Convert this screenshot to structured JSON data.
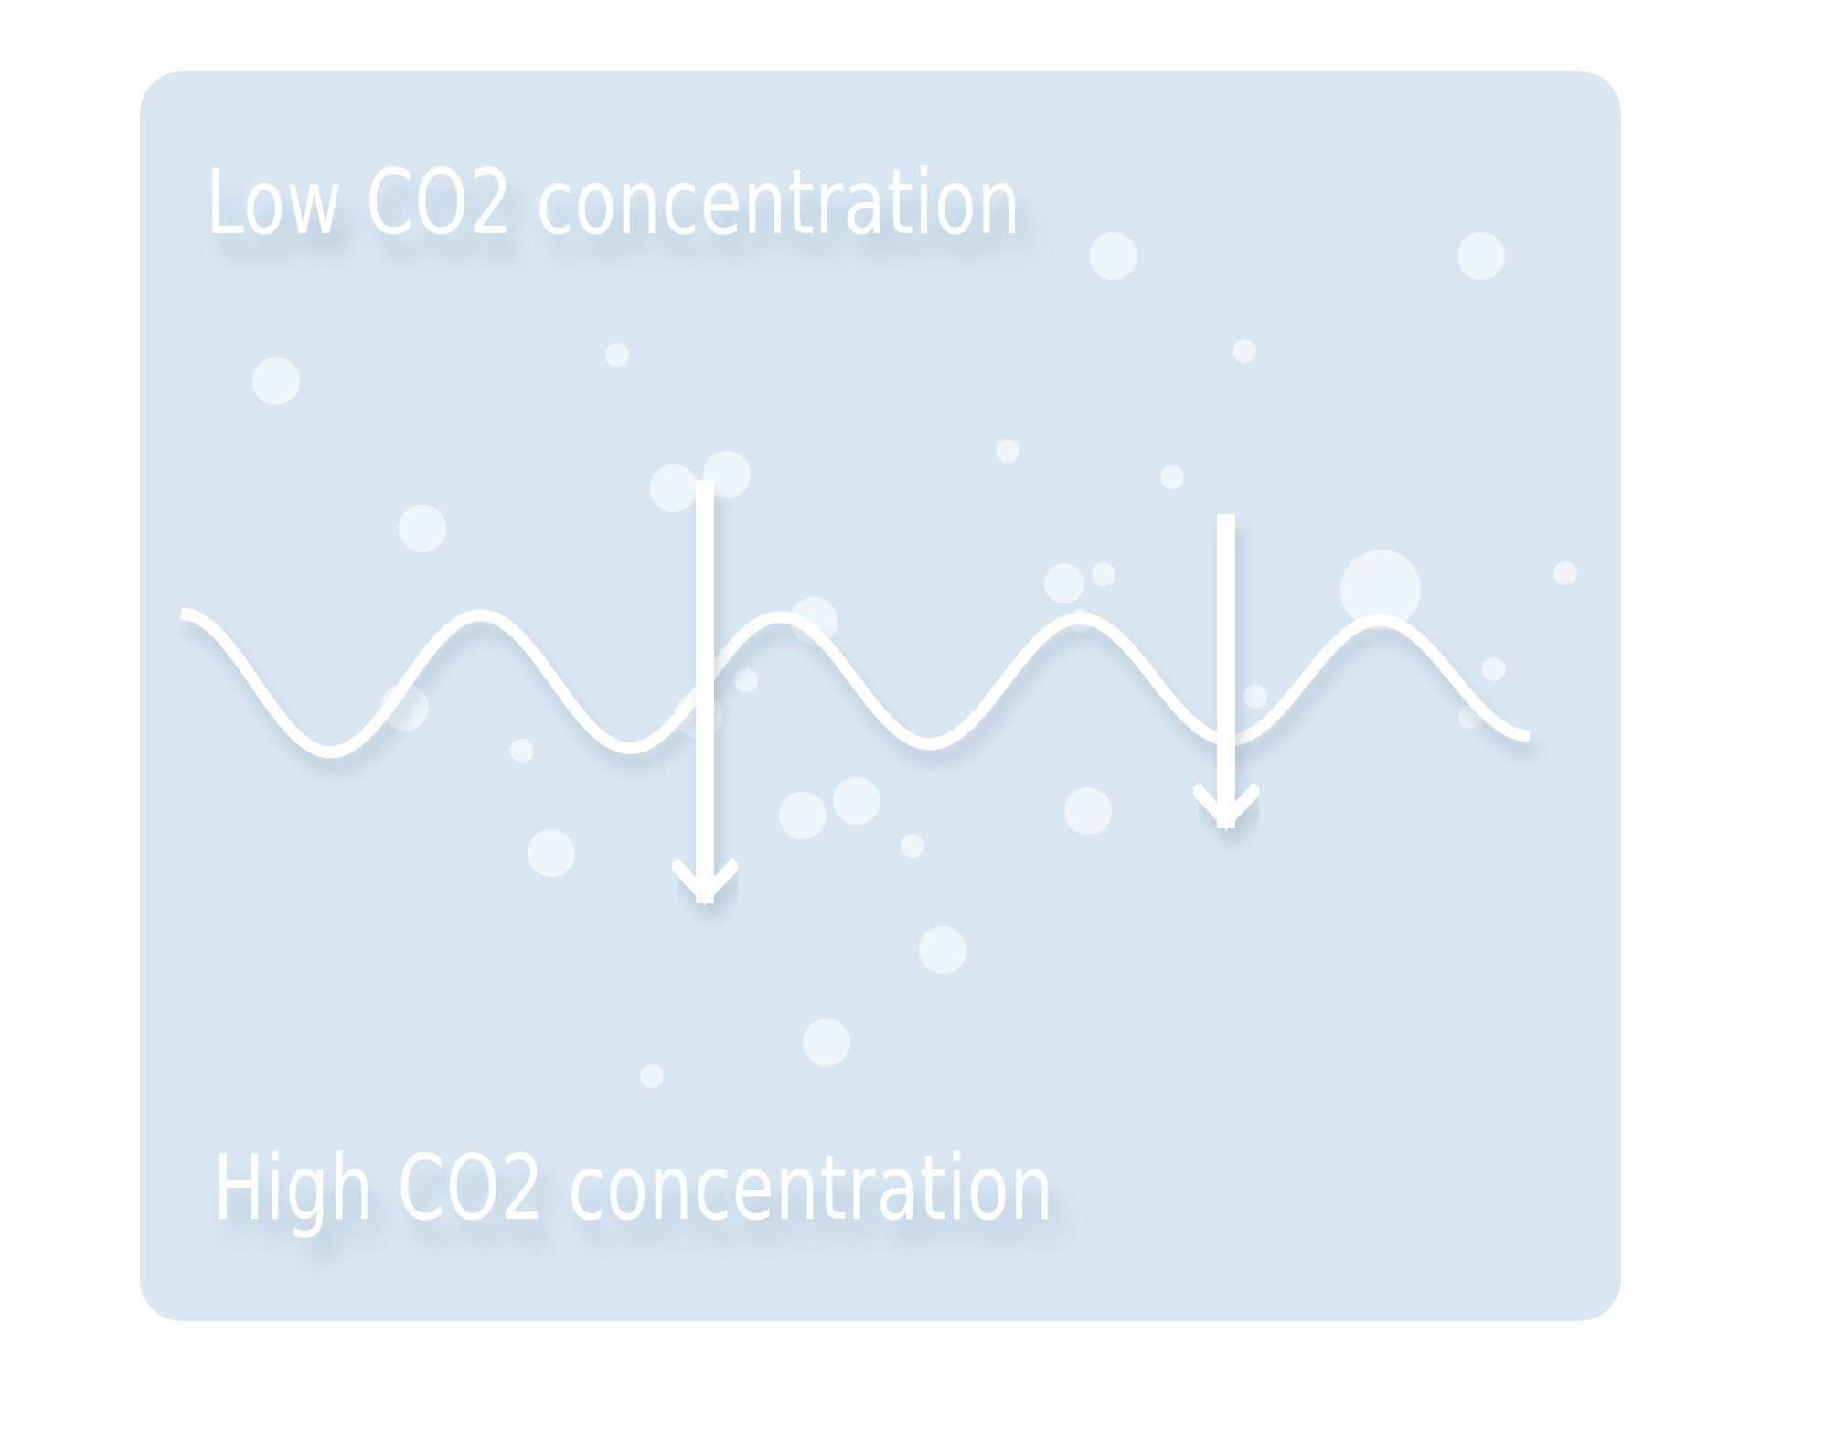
{
  "diagram": {
    "top_label": "Low CO2 concentration",
    "bottom_label": "High CO2 concentration",
    "colors": {
      "page_background": "#ffffff",
      "panel_background": "#d9e7f3",
      "line": "#ffffff",
      "bubble": "#f2f7fb",
      "shadow": "#9fb5c8"
    },
    "arrow_count": 2,
    "wave_periods": 4.5,
    "bubble_count": 40
  }
}
